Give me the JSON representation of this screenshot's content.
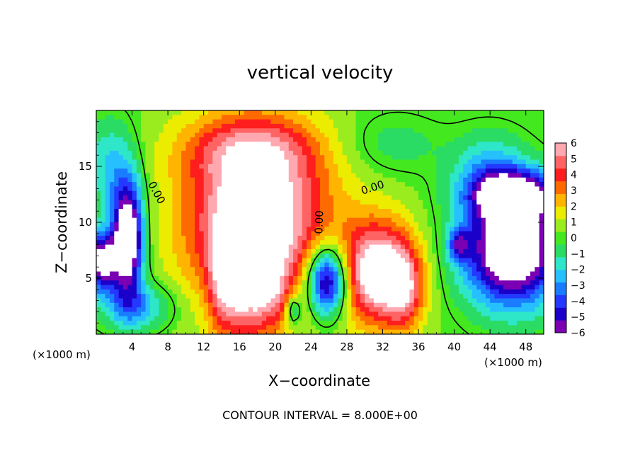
{
  "chart_data": {
    "type": "heatmap",
    "title": "vertical velocity",
    "xlabel": "X−coordinate",
    "ylabel": "Z−coordinate",
    "x_unit": "(×1000 m)",
    "footnote": "CONTOUR INTERVAL = 8.000E+00",
    "xlim": [
      0,
      50
    ],
    "ylim": [
      0,
      20
    ],
    "x_ticks": [
      "4",
      "8",
      "12",
      "16",
      "20",
      "24",
      "28",
      "32",
      "36",
      "40",
      "44",
      "48"
    ],
    "y_ticks": [
      "5",
      "10",
      "15"
    ],
    "colorbar": {
      "range": [
        -6,
        6
      ],
      "ticks": [
        "6",
        "5",
        "4",
        "3",
        "2",
        "1",
        "0",
        "−1",
        "−2",
        "−3",
        "−4",
        "−5",
        "−6"
      ],
      "colors": [
        "#7b00b4",
        "#1a00c8",
        "#2438ff",
        "#1a7cff",
        "#26c0ff",
        "#2ee6c8",
        "#2adc64",
        "#44e81e",
        "#9aec1e",
        "#ecec00",
        "#ffb400",
        "#ff6a00",
        "#ff1e1e",
        "#ff6464",
        "#ffa8b0"
      ],
      "over_color": "#ffffff",
      "under_color": "#ffffff"
    },
    "contour_labels": [
      {
        "text": "0.00",
        "x": 6.4,
        "y": 12.5
      },
      {
        "text": "0.00",
        "x": 25.3,
        "y": 10.0
      },
      {
        "text": "0.00",
        "x": 31.0,
        "y": 12.8
      }
    ],
    "features": [
      {
        "x": 18.0,
        "z": 10.0,
        "sx": 5.5,
        "sz": 5.5,
        "w": 7.5
      },
      {
        "x": 17.0,
        "z": 16.5,
        "sx": 5.5,
        "sz": 2.2,
        "w": 2.8
      },
      {
        "x": 14.0,
        "z": 4.5,
        "sx": 1.0,
        "sz": 3.5,
        "w": 3.0
      },
      {
        "x": 16.0,
        "z": 4.0,
        "sx": 1.0,
        "sz": 3.5,
        "w": 3.0
      },
      {
        "x": 18.0,
        "z": 3.5,
        "sx": 0.9,
        "sz": 3.0,
        "w": 2.5
      },
      {
        "x": 20.0,
        "z": 3.5,
        "sx": 1.0,
        "sz": 2.5,
        "w": 2.0
      },
      {
        "x": 31.5,
        "z": 5.5,
        "sx": 2.8,
        "sz": 3.2,
        "w": 7.0
      },
      {
        "x": 34.5,
        "z": 4.0,
        "sx": 1.5,
        "sz": 2.5,
        "w": 3.5
      },
      {
        "x": 25.8,
        "z": 4.8,
        "sx": 1.6,
        "sz": 2.2,
        "w": -8.0
      },
      {
        "x": 3.5,
        "z": 8.5,
        "sx": 1.2,
        "sz": 3.5,
        "w": -9.0
      },
      {
        "x": 0.5,
        "z": 6.5,
        "sx": 1.3,
        "sz": 1.8,
        "w": -7.5
      },
      {
        "x": 46.5,
        "z": 7.5,
        "sx": 3.8,
        "sz": 3.5,
        "w": -9.0
      },
      {
        "x": 47.0,
        "z": 12.5,
        "sx": 3.5,
        "sz": 1.5,
        "w": -6.0
      },
      {
        "x": 44.0,
        "z": 14.5,
        "sx": 3.0,
        "sz": 2.5,
        "w": -2.5
      },
      {
        "x": 1.5,
        "z": 15.0,
        "sx": 2.0,
        "sz": 3.0,
        "w": -2.5
      },
      {
        "x": 4.5,
        "z": 2.5,
        "sx": 3.0,
        "sz": 1.5,
        "w": -3.0
      },
      {
        "x": 22.0,
        "z": 2.2,
        "sx": 0.6,
        "sz": 1.0,
        "w": -3.5
      },
      {
        "x": 40.5,
        "z": 8.0,
        "sx": 0.8,
        "sz": 1.0,
        "w": -4.0
      },
      {
        "x": 33.0,
        "z": 17.0,
        "sx": 4.0,
        "sz": 2.0,
        "w": -1.2
      }
    ]
  }
}
